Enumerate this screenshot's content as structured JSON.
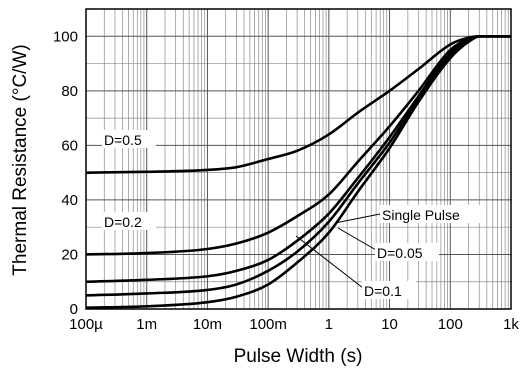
{
  "chart_data": {
    "type": "line",
    "title": "",
    "xlabel": "Pulse Width (s)",
    "ylabel": "Thermal Resistance (°C/W)",
    "x_scale": "log",
    "xlim": [
      0.0001,
      1000
    ],
    "ylim": [
      0,
      110
    ],
    "grid": true,
    "x_ticks": [
      {
        "value": 0.0001,
        "label": "100µ"
      },
      {
        "value": 0.001,
        "label": "1m"
      },
      {
        "value": 0.01,
        "label": "10m"
      },
      {
        "value": 0.1,
        "label": "100m"
      },
      {
        "value": 1,
        "label": "1"
      },
      {
        "value": 10,
        "label": "10"
      },
      {
        "value": 100,
        "label": "100"
      },
      {
        "value": 1000,
        "label": "1k"
      }
    ],
    "y_ticks": [
      {
        "value": 0,
        "label": "0"
      },
      {
        "value": 20,
        "label": "20"
      },
      {
        "value": 40,
        "label": "40"
      },
      {
        "value": 60,
        "label": "60"
      },
      {
        "value": 80,
        "label": "80"
      },
      {
        "value": 100,
        "label": "100"
      }
    ],
    "series": [
      {
        "name": "D=0.5",
        "x": [
          0.0001,
          0.001,
          0.01,
          0.03,
          0.1,
          0.3,
          1,
          3,
          10,
          30,
          100,
          200,
          300,
          1000
        ],
        "y": [
          50,
          50.3,
          51,
          52,
          55,
          58,
          64,
          72,
          80,
          88,
          97,
          99.5,
          100,
          100
        ]
      },
      {
        "name": "D=0.2",
        "x": [
          0.0001,
          0.001,
          0.01,
          0.03,
          0.1,
          0.3,
          1,
          3,
          10,
          30,
          100,
          200,
          300,
          1000
        ],
        "y": [
          20,
          20.5,
          22,
          24,
          28,
          34,
          42,
          54,
          67,
          80,
          95,
          99,
          100,
          100
        ]
      },
      {
        "name": "D=0.1",
        "x": [
          0.0001,
          0.001,
          0.01,
          0.03,
          0.1,
          0.3,
          1,
          3,
          10,
          30,
          100,
          200,
          300,
          1000
        ],
        "y": [
          10,
          10.7,
          12,
          14,
          18,
          25,
          35,
          48,
          63,
          78,
          94,
          98.5,
          100,
          100
        ]
      },
      {
        "name": "D=0.05",
        "x": [
          0.0001,
          0.001,
          0.01,
          0.03,
          0.1,
          0.3,
          1,
          3,
          10,
          30,
          100,
          200,
          300,
          1000
        ],
        "y": [
          5,
          5.7,
          7,
          9,
          14,
          21,
          32,
          46,
          61,
          77,
          93,
          98,
          100,
          100
        ]
      },
      {
        "name": "Single Pulse",
        "x": [
          0.0001,
          0.001,
          0.01,
          0.03,
          0.1,
          0.3,
          1,
          3,
          10,
          30,
          100,
          200,
          300,
          1000
        ],
        "y": [
          0.5,
          1,
          2.5,
          4.5,
          9,
          17,
          28,
          43,
          59,
          76,
          92,
          98,
          100,
          100
        ]
      }
    ],
    "annotations": [
      {
        "text": "D=0.5"
      },
      {
        "text": "D=0.2"
      },
      {
        "text": "Single Pulse"
      },
      {
        "text": "D=0.05"
      },
      {
        "text": "D=0.1"
      }
    ]
  }
}
